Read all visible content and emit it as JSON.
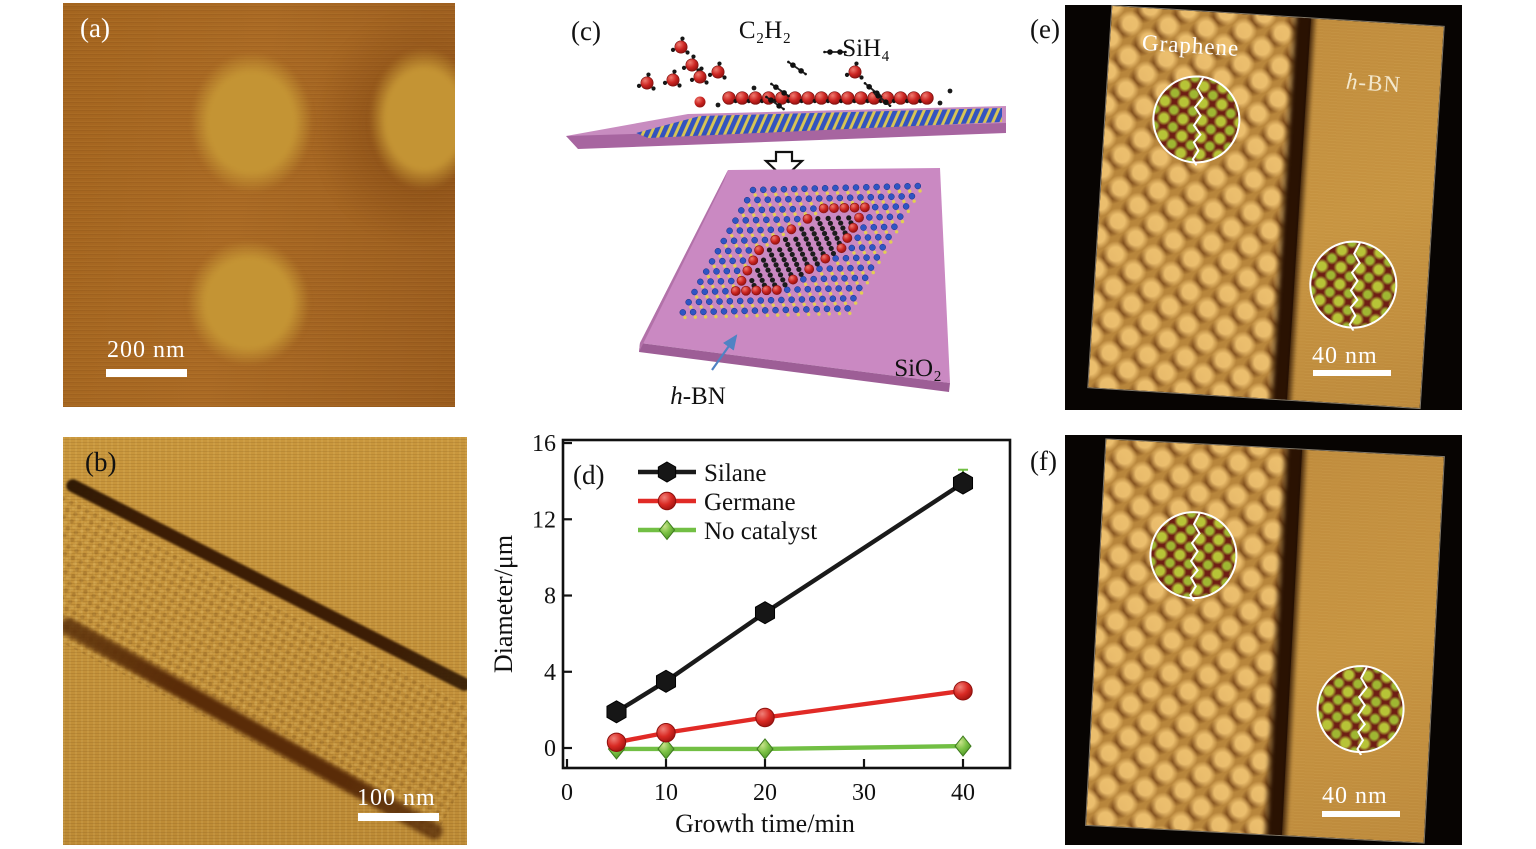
{
  "panels": {
    "a": {
      "label": "(a)",
      "scale_bar": "200 nm"
    },
    "b": {
      "label": "(b)",
      "scale_bar": "100 nm"
    },
    "c": {
      "label": "(c)",
      "molecule_left": "C₂H₂",
      "molecule_right": "SiH₄",
      "substrate": "SiO₂",
      "film_italic": "h",
      "film_rest": "-BN"
    },
    "e": {
      "label": "(e)",
      "scale_bar": "40 nm",
      "region_left": "Graphene",
      "region_right_italic": "h",
      "region_right_rest": "-BN"
    },
    "f": {
      "label": "(f)",
      "scale_bar": "40 nm"
    }
  },
  "chart_data": {
    "type": "line",
    "panel_label": "(d)",
    "title": "",
    "xlabel": "Growth time/min",
    "ylabel": "Diameter/μm",
    "xticks": [
      0,
      10,
      20,
      30,
      40
    ],
    "yticks": [
      0,
      4,
      8,
      12,
      16
    ],
    "xlim": [
      -0.4,
      44.8
    ],
    "ylim": [
      -1.05,
      16.2
    ],
    "grid": false,
    "legend_position": "top-left",
    "x": [
      5,
      10,
      20,
      40
    ],
    "series": [
      {
        "name": "Silane",
        "color": "#1a1a1a",
        "marker": "hexagon",
        "values": [
          1.9,
          3.5,
          7.1,
          13.9
        ],
        "errors": [
          0,
          0,
          0.35,
          0.7
        ],
        "error_color": "#72bf44"
      },
      {
        "name": "Germane",
        "color": "#e12a26",
        "marker": "circle",
        "values": [
          0.3,
          0.8,
          1.6,
          3.0
        ]
      },
      {
        "name": "No catalyst",
        "color": "#72bf44",
        "marker": "diamond",
        "values": [
          -0.05,
          -0.05,
          -0.05,
          0.1
        ]
      }
    ]
  },
  "colors": {
    "afm_background": "#a4651f",
    "afm_island": "#c49434",
    "afm_gold": "#c9973d",
    "stripe_dark": "#3c1d05",
    "slab_pink": "#ca89c2",
    "slab_edge": "#9d5e96",
    "atom_blue": "#2f55c4",
    "atom_yellow": "#e3cf52",
    "atom_red": "#c52522",
    "atom_black": "#1c1c1c",
    "inset_bg": "#6e1d14",
    "inset_dot": "#b7c437"
  }
}
